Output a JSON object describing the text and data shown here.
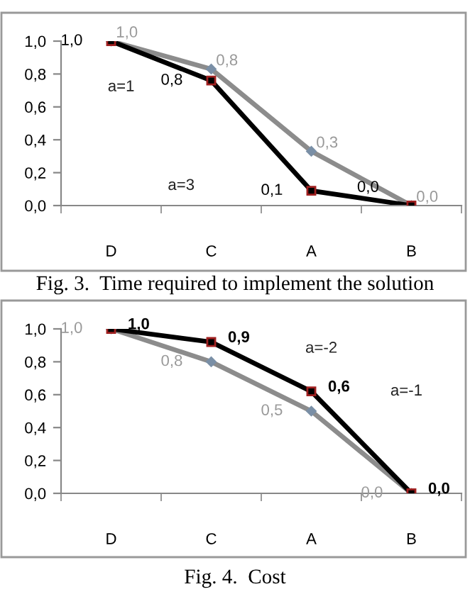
{
  "chart_data": [
    {
      "type": "line",
      "title": "Fig. 3.  Time required to implement the solution",
      "categories": [
        "D",
        "C",
        "A",
        "B"
      ],
      "series": [
        {
          "color": "#8c8c8c",
          "values": [
            1.0,
            0.83,
            0.33,
            0.0
          ],
          "value_labels": [
            "1,0",
            "0,8",
            "0,3",
            "0,0"
          ],
          "marker": "diamond"
        },
        {
          "color": "#000000",
          "values": [
            1.0,
            0.76,
            0.09,
            0.0
          ],
          "value_labels": [
            "1,0",
            "0,8",
            "0,1",
            "0,0"
          ],
          "marker": "square"
        }
      ],
      "annotations": [
        "a=1",
        "a=3"
      ],
      "ylim": [
        0,
        1.0
      ],
      "yticks": [
        {
          "value": 0,
          "label": "0,0"
        },
        {
          "value": 0.2,
          "label": "0,2"
        },
        {
          "value": 0.4,
          "label": "0,4"
        },
        {
          "value": 0.6,
          "label": "0,6"
        },
        {
          "value": 0.8,
          "label": "0,8"
        },
        {
          "value": 1.0,
          "label": "1,0"
        }
      ],
      "grid": false,
      "legend": false
    },
    {
      "type": "line",
      "title": "Fig. 4.  Cost",
      "categories": [
        "D",
        "C",
        "A",
        "B"
      ],
      "series": [
        {
          "color": "#8c8c8c",
          "values": [
            1.0,
            0.8,
            0.5,
            0.0
          ],
          "value_labels": [
            "1,0",
            "0,8",
            "0,5",
            "0,0"
          ],
          "marker": "diamond"
        },
        {
          "color": "#000000",
          "values": [
            1.0,
            0.92,
            0.62,
            0.0
          ],
          "value_labels": [
            "1,0",
            "0,9",
            "0,6",
            "0,0"
          ],
          "marker": "square"
        }
      ],
      "annotations": [
        "a=-2",
        "a=-1"
      ],
      "ylim": [
        0,
        1.0
      ],
      "yticks": [
        {
          "value": 0,
          "label": "0,0"
        },
        {
          "value": 0.2,
          "label": "0,2"
        },
        {
          "value": 0.4,
          "label": "0,4"
        },
        {
          "value": 0.6,
          "label": "0,6"
        },
        {
          "value": 0.8,
          "label": "0,8"
        },
        {
          "value": 1.0,
          "label": "1,0"
        }
      ],
      "grid": false,
      "legend": false
    }
  ]
}
